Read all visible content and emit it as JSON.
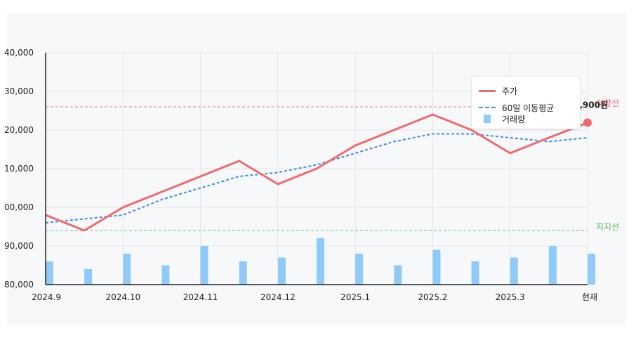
{
  "chart_data": {
    "type": "line",
    "title": "",
    "xlabel": "",
    "ylabel": "",
    "y_tick_labels": [
      "40,000",
      "30,000",
      "20,000",
      "10,000",
      "00,000",
      "90,000",
      "80,000"
    ],
    "x_tick_labels": [
      "2024.9",
      "2024.10",
      "2024.11",
      "2024.12",
      "2025.1",
      "2025.2",
      "2025.3",
      "현재"
    ],
    "grid": true,
    "legend_position": "top-right",
    "series": [
      {
        "name": "주가",
        "kind": "line",
        "color": "#ef6b6b",
        "values": [
          98000,
          94000,
          100000,
          104000,
          108000,
          112000,
          106000,
          110000,
          116000,
          120000,
          124000,
          120000,
          114000,
          118000,
          121900
        ]
      },
      {
        "name": "60일 이동평균",
        "kind": "dashed-line",
        "color": "#3a8fde",
        "values": [
          96000,
          97000,
          98000,
          102000,
          105000,
          108000,
          109000,
          111000,
          114000,
          117000,
          119000,
          119000,
          118000,
          117000,
          118000
        ]
      },
      {
        "name": "거래량",
        "kind": "bar",
        "color": "#90caf9",
        "values": [
          3,
          2,
          4,
          2.5,
          5,
          3,
          3.5,
          6,
          4,
          2.5,
          4.5,
          3,
          3.5,
          5,
          4
        ]
      }
    ],
    "reference_lines": [
      {
        "label": "저항선",
        "value": 126000,
        "color": "#ef6b6b"
      },
      {
        "label": "지지선",
        "value": 94000,
        "color": "#5cb85c"
      }
    ],
    "current_price_label": "3,900원"
  },
  "colors": {
    "price": "#ef6b6b",
    "ma": "#3a8fde",
    "volume": "#90caf9",
    "resistance": "#ef6b6b",
    "support": "#5cb85c",
    "grid": "#e4e6ea",
    "axis": "#222222"
  }
}
